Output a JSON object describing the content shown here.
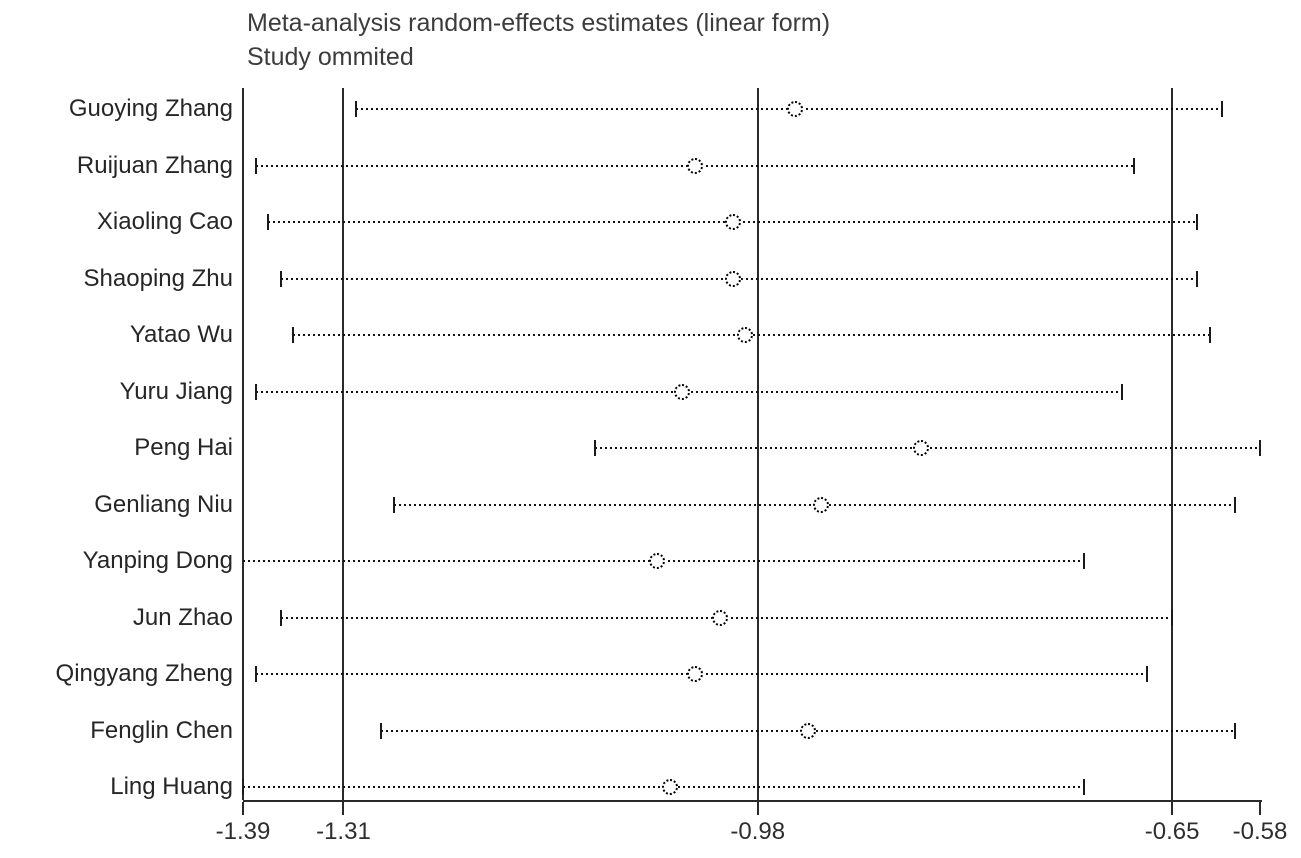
{
  "title": {
    "line1": "Meta-analysis random-effects estimates (linear form)",
    "line2": "Study ommited"
  },
  "chart_data": {
    "type": "forest",
    "subtype": "leave-one-out-sensitivity",
    "title": "Meta-analysis random-effects estimates (linear form)",
    "subtitle": "Study ommited",
    "xlim": [
      -1.39,
      -0.58
    ],
    "x_ticks": [
      -1.39,
      -1.31,
      -0.98,
      -0.65,
      -0.58
    ],
    "x_tick_labels": [
      "-1.39",
      "-1.31",
      "-0.98",
      "-0.65",
      "-0.58"
    ],
    "reference_lines": {
      "lower_ci": -1.31,
      "pooled_estimate": -0.98,
      "upper_ci": -0.65
    },
    "grid": false,
    "legend": "none",
    "studies": [
      {
        "label": "Guoying Zhang",
        "estimate": -0.95,
        "lower": -1.3,
        "upper": -0.61,
        "left_clipped": false
      },
      {
        "label": "Ruijuan Zhang",
        "estimate": -1.03,
        "lower": -1.38,
        "upper": -0.68,
        "left_clipped": false
      },
      {
        "label": "Xiaoling Cao",
        "estimate": -1.0,
        "lower": -1.37,
        "upper": -0.63,
        "left_clipped": false
      },
      {
        "label": "Shaoping Zhu",
        "estimate": -1.0,
        "lower": -1.36,
        "upper": -0.63,
        "left_clipped": false
      },
      {
        "label": "Yatao Wu",
        "estimate": -0.99,
        "lower": -1.35,
        "upper": -0.62,
        "left_clipped": false
      },
      {
        "label": "Yuru Jiang",
        "estimate": -1.04,
        "lower": -1.38,
        "upper": -0.69,
        "left_clipped": false
      },
      {
        "label": "Peng Hai",
        "estimate": -0.85,
        "lower": -1.11,
        "upper": -0.58,
        "left_clipped": false
      },
      {
        "label": "Genliang Niu",
        "estimate": -0.93,
        "lower": -1.27,
        "upper": -0.6,
        "left_clipped": false
      },
      {
        "label": "Yanping Dong",
        "estimate": -1.06,
        "lower": -1.39,
        "upper": -0.72,
        "left_clipped": true
      },
      {
        "label": "Jun Zhao",
        "estimate": -1.01,
        "lower": -1.36,
        "upper": -0.65,
        "left_clipped": false
      },
      {
        "label": "Qingyang Zheng",
        "estimate": -1.03,
        "lower": -1.38,
        "upper": -0.67,
        "left_clipped": false
      },
      {
        "label": "Fenglin Chen",
        "estimate": -0.94,
        "lower": -1.28,
        "upper": -0.6,
        "left_clipped": false
      },
      {
        "label": "Ling Huang",
        "estimate": -1.05,
        "lower": -1.39,
        "upper": -0.72,
        "left_clipped": false
      }
    ],
    "colors": {
      "line": "#111111",
      "marker_stroke": "#000000",
      "marker_fill": "#ffffff",
      "axis": "#2a2a2a",
      "text": "#2e2e2e"
    }
  }
}
